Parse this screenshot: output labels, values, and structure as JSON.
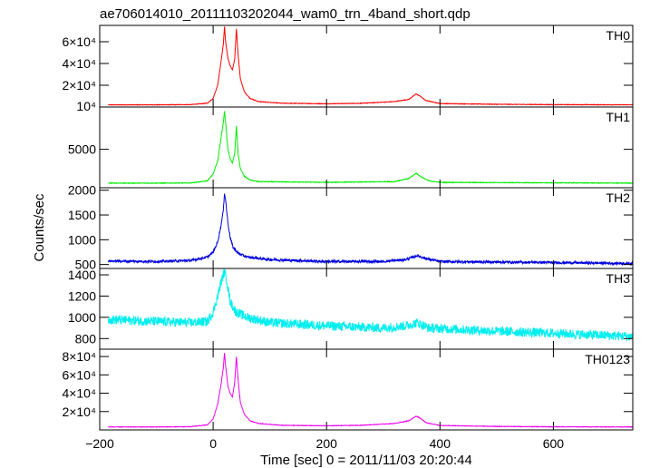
{
  "chart_data": {
    "type": "line",
    "title": "ae706014010_20111103202044_wam0_trn_4band_short.qdp",
    "xlabel": "Time [sec] 0 = 2011/11/03 20:20:44",
    "ylabel": "Counts/sec",
    "xlim": [
      -200,
      740
    ],
    "x_ticks": [
      -200,
      0,
      200,
      400,
      600
    ],
    "x_tick_labels": [
      "−200",
      "0",
      "200",
      "400",
      "600"
    ],
    "grid": false,
    "panels": [
      {
        "name": "TH0",
        "color": "#ff0000",
        "ylim": [
          0,
          75000
        ],
        "ticks": [
          20000,
          40000,
          60000
        ],
        "tick_labels": [
          "2×10⁴",
          "4×10⁴",
          "6×10⁴"
        ],
        "bottom_tick_label": "10⁴",
        "noise": 250,
        "points": [
          [
            -185,
            2000
          ],
          [
            -100,
            2000
          ],
          [
            -40,
            2200
          ],
          [
            -10,
            3500
          ],
          [
            0,
            8000
          ],
          [
            8,
            20000
          ],
          [
            14,
            42000
          ],
          [
            18,
            58000
          ],
          [
            20,
            74000
          ],
          [
            22,
            60000
          ],
          [
            26,
            45000
          ],
          [
            30,
            38000
          ],
          [
            34,
            34000
          ],
          [
            38,
            44000
          ],
          [
            41,
            72000
          ],
          [
            44,
            48000
          ],
          [
            48,
            26000
          ],
          [
            55,
            14000
          ],
          [
            65,
            8000
          ],
          [
            80,
            5000
          ],
          [
            120,
            3500
          ],
          [
            200,
            3000
          ],
          [
            260,
            3400
          ],
          [
            320,
            5000
          ],
          [
            345,
            7000
          ],
          [
            358,
            12000
          ],
          [
            365,
            10000
          ],
          [
            375,
            6000
          ],
          [
            400,
            3200
          ],
          [
            500,
            2500
          ],
          [
            600,
            2200
          ],
          [
            740,
            2000
          ]
        ]
      },
      {
        "name": "TH1",
        "color": "#00ee00",
        "ylim": [
          0,
          10500
        ],
        "ticks": [
          5000
        ],
        "tick_labels": [
          "5000"
        ],
        "bottom_tick_label": "",
        "noise": 40,
        "points": [
          [
            -185,
            600
          ],
          [
            -100,
            600
          ],
          [
            -40,
            620
          ],
          [
            -10,
            900
          ],
          [
            0,
            1800
          ],
          [
            8,
            3500
          ],
          [
            14,
            6500
          ],
          [
            18,
            8500
          ],
          [
            20,
            10000
          ],
          [
            22,
            8500
          ],
          [
            26,
            5000
          ],
          [
            30,
            3800
          ],
          [
            34,
            3200
          ],
          [
            38,
            4500
          ],
          [
            41,
            8000
          ],
          [
            44,
            4500
          ],
          [
            48,
            2500
          ],
          [
            55,
            1500
          ],
          [
            65,
            1000
          ],
          [
            80,
            800
          ],
          [
            200,
            700
          ],
          [
            320,
            800
          ],
          [
            345,
            1200
          ],
          [
            358,
            1900
          ],
          [
            365,
            1500
          ],
          [
            380,
            900
          ],
          [
            400,
            700
          ],
          [
            740,
            600
          ]
        ]
      },
      {
        "name": "TH2",
        "color": "#0000dd",
        "ylim": [
          420,
          2050
        ],
        "ticks": [
          500,
          1000,
          1500,
          2000
        ],
        "tick_labels": [
          "500",
          "1000",
          "1500",
          "2000"
        ],
        "bottom_tick_label": "",
        "noise": 25,
        "points": [
          [
            -185,
            570
          ],
          [
            -100,
            560
          ],
          [
            -40,
            580
          ],
          [
            -10,
            650
          ],
          [
            0,
            750
          ],
          [
            8,
            950
          ],
          [
            14,
            1300
          ],
          [
            18,
            1600
          ],
          [
            20,
            1950
          ],
          [
            22,
            1800
          ],
          [
            26,
            1350
          ],
          [
            30,
            1050
          ],
          [
            35,
            850
          ],
          [
            45,
            720
          ],
          [
            60,
            650
          ],
          [
            100,
            600
          ],
          [
            200,
            560
          ],
          [
            300,
            560
          ],
          [
            340,
            600
          ],
          [
            360,
            680
          ],
          [
            375,
            620
          ],
          [
            400,
            560
          ],
          [
            600,
            540
          ],
          [
            740,
            520
          ]
        ]
      },
      {
        "name": "TH3",
        "color": "#00eeee",
        "ylim": [
          700,
          1460
        ],
        "ticks": [
          800,
          1000,
          1200,
          1400
        ],
        "tick_labels": [
          "800",
          "1000",
          "1200",
          "1400"
        ],
        "bottom_tick_label": "",
        "noise": 45,
        "points": [
          [
            -185,
            980
          ],
          [
            -100,
            960
          ],
          [
            -40,
            950
          ],
          [
            -10,
            960
          ],
          [
            0,
            1050
          ],
          [
            8,
            1200
          ],
          [
            14,
            1330
          ],
          [
            18,
            1400
          ],
          [
            20,
            1430
          ],
          [
            24,
            1350
          ],
          [
            30,
            1150
          ],
          [
            40,
            1050
          ],
          [
            60,
            1000
          ],
          [
            100,
            950
          ],
          [
            200,
            920
          ],
          [
            300,
            900
          ],
          [
            340,
            920
          ],
          [
            360,
            950
          ],
          [
            380,
            900
          ],
          [
            500,
            870
          ],
          [
            600,
            850
          ],
          [
            740,
            820
          ]
        ]
      },
      {
        "name": "TH0123",
        "color": "#ee00ee",
        "ylim": [
          0,
          88000
        ],
        "ticks": [
          20000,
          40000,
          60000,
          80000
        ],
        "tick_labels": [
          "2×10⁴",
          "4×10⁴",
          "6×10⁴",
          "8×10⁴"
        ],
        "bottom_tick_label": "",
        "noise": 300,
        "points": [
          [
            -185,
            3200
          ],
          [
            -100,
            3200
          ],
          [
            -40,
            3500
          ],
          [
            -10,
            5500
          ],
          [
            0,
            12000
          ],
          [
            8,
            28000
          ],
          [
            14,
            50000
          ],
          [
            18,
            68000
          ],
          [
            20,
            84000
          ],
          [
            22,
            70000
          ],
          [
            26,
            48000
          ],
          [
            30,
            40000
          ],
          [
            34,
            36000
          ],
          [
            38,
            52000
          ],
          [
            41,
            80000
          ],
          [
            44,
            55000
          ],
          [
            48,
            30000
          ],
          [
            55,
            17000
          ],
          [
            65,
            10000
          ],
          [
            80,
            7000
          ],
          [
            120,
            5000
          ],
          [
            200,
            4500
          ],
          [
            260,
            5000
          ],
          [
            320,
            7000
          ],
          [
            345,
            10000
          ],
          [
            358,
            15000
          ],
          [
            365,
            13000
          ],
          [
            375,
            8000
          ],
          [
            400,
            4800
          ],
          [
            500,
            3800
          ],
          [
            600,
            3400
          ],
          [
            740,
            3200
          ]
        ]
      }
    ]
  }
}
